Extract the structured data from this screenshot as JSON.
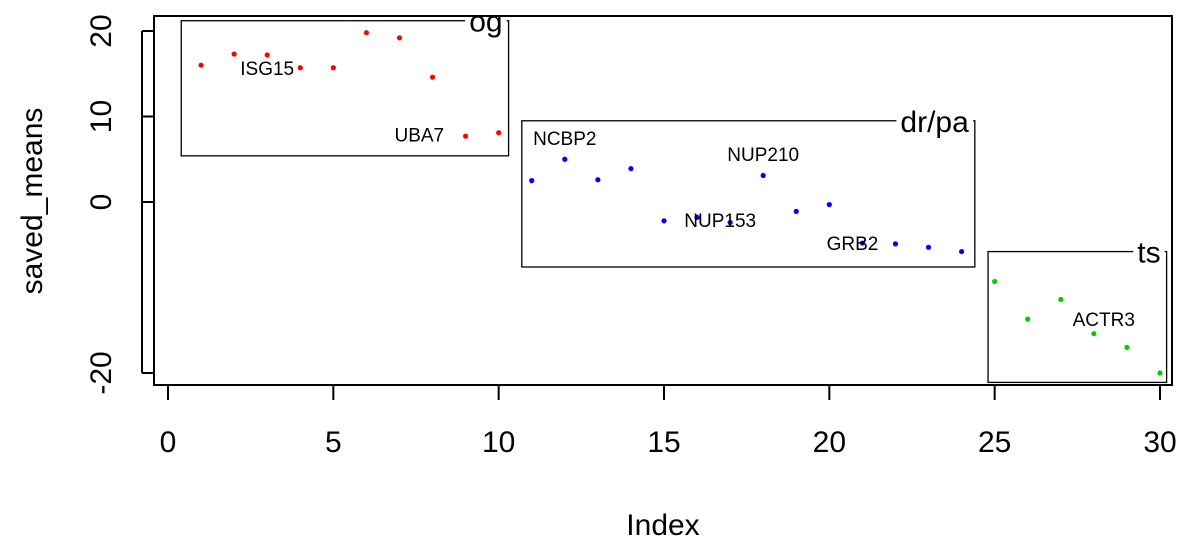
{
  "chart_data": {
    "type": "scatter",
    "xlabel": "Index",
    "ylabel": "saved_means",
    "xlim": [
      0,
      30
    ],
    "ylim": [
      -20,
      20
    ],
    "x_ticks": [
      0,
      5,
      10,
      15,
      20,
      25,
      30
    ],
    "y_ticks": [
      20,
      10,
      0,
      -20
    ],
    "grid": false,
    "series": [
      {
        "color": "#ff0000",
        "x": [
          1,
          2,
          3,
          4,
          5,
          6,
          7,
          8,
          9,
          10
        ],
        "y": [
          16.0,
          17.3,
          17.2,
          15.7,
          15.7,
          19.8,
          19.2,
          14.6,
          7.7,
          8.1
        ]
      },
      {
        "color": "#0000ff",
        "x": [
          11,
          12,
          13,
          14,
          15,
          16,
          17,
          18,
          19,
          20,
          21,
          22,
          23,
          24
        ],
        "y": [
          2.5,
          5.0,
          2.6,
          3.9,
          -2.2,
          -1.8,
          -2.4,
          3.1,
          -1.1,
          -0.3,
          -4.8,
          -4.9,
          -5.3,
          -5.8
        ]
      },
      {
        "color": "#00cd00",
        "x": [
          25,
          26,
          27,
          28,
          29,
          30
        ],
        "y": [
          -9.3,
          -13.7,
          -11.4,
          -15.4,
          -17.0,
          -20.0
        ]
      }
    ],
    "point_labels": [
      {
        "text": "ISG15",
        "x": 3,
        "y": 15.7
      },
      {
        "text": "UBA7",
        "x": 7.6,
        "y": 7.9
      },
      {
        "text": "NCBP2",
        "x": 12,
        "y": 7.5
      },
      {
        "text": "NUP210",
        "x": 18,
        "y": 5.6
      },
      {
        "text": "NUP153",
        "x": 16.7,
        "y": -2.1
      },
      {
        "text": "GRB2",
        "x": 20.7,
        "y": -4.8
      },
      {
        "text": "ACTR3",
        "x": 28.3,
        "y": -13.7
      }
    ],
    "groups": [
      {
        "label": "og",
        "x_range": [
          0.4,
          10.3
        ],
        "y_range": [
          5.4,
          21.2
        ]
      },
      {
        "label": "dr/pa",
        "x_range": [
          10.7,
          24.4
        ],
        "y_range": [
          -7.6,
          9.5
        ]
      },
      {
        "label": "ts",
        "x_range": [
          24.8,
          30.2
        ],
        "y_range": [
          -21.1,
          -5.8
        ]
      }
    ]
  }
}
